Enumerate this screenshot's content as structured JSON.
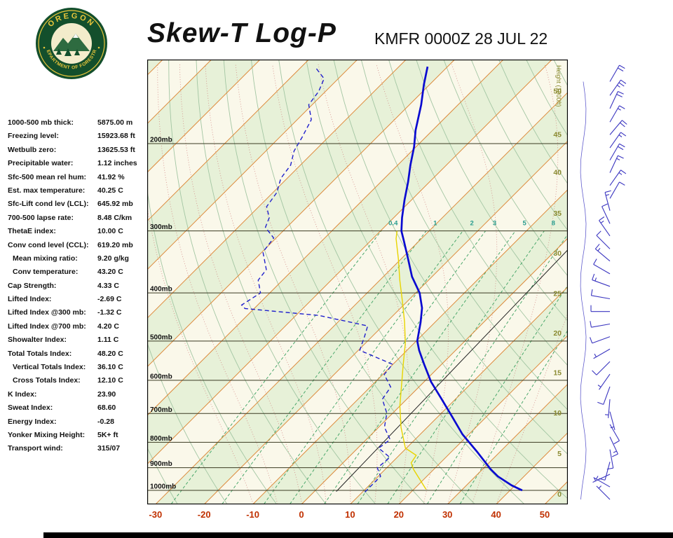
{
  "header": {
    "title": "Skew-T Log-P",
    "station": "KMFR 0000Z 28 JUL 22"
  },
  "logo": {
    "top": "OREGON",
    "bottom": "DEPARTMENT OF FORESTRY"
  },
  "indices": [
    {
      "label": "1000-500 mb thick:",
      "value": "5875.00 m"
    },
    {
      "label": "Freezing level:",
      "value": "15923.68 ft"
    },
    {
      "label": "Wetbulb zero:",
      "value": "13625.53 ft"
    },
    {
      "label": "Precipitable water:",
      "value": "1.12 inches"
    },
    {
      "label": "Sfc-500 mean rel hum:",
      "value": "41.92 %"
    },
    {
      "label": "Est. max temperature:",
      "value": "40.25 C"
    },
    {
      "label": "Sfc-Lift cond lev (LCL):",
      "value": "645.92 mb"
    },
    {
      "label": "700-500 lapse rate:",
      "value": "8.48 C/km"
    },
    {
      "label": "ThetaE index:",
      "value": "10.00 C"
    },
    {
      "label": "Conv cond level (CCL):",
      "value": "619.20 mb"
    },
    {
      "label": "Mean mixing ratio:",
      "value": "9.20 g/kg",
      "indent": true
    },
    {
      "label": "Conv temperature:",
      "value": "43.20 C",
      "indent": true
    },
    {
      "label": "Cap Strength:",
      "value": "4.33 C"
    },
    {
      "label": "Lifted Index:",
      "value": "-2.69 C"
    },
    {
      "label": "Lifted Index @300 mb:",
      "value": "-1.32 C"
    },
    {
      "label": "Lifted Index @700 mb:",
      "value": "4.20 C"
    },
    {
      "label": "Showalter Index:",
      "value": "1.11 C"
    },
    {
      "label": "Total Totals Index:",
      "value": "48.20 C"
    },
    {
      "label": "Vertical Totals Index:",
      "value": "36.10 C",
      "indent": true
    },
    {
      "label": "Cross Totals Index:",
      "value": "12.10 C",
      "indent": true
    },
    {
      "label": "K Index:",
      "value": "23.90"
    },
    {
      "label": "Sweat Index:",
      "value": "68.60"
    },
    {
      "label": "Energy Index:",
      "value": "-0.28"
    },
    {
      "label": "Yonker Mixing Height:",
      "value": "5K+ ft"
    },
    {
      "label": "Transport wind:",
      "value": "315/07"
    }
  ],
  "colors": {
    "temperature": "#0a0ad0",
    "dewpoint": "#2020cc",
    "wetbulb": "#e8d400",
    "isotherm": "#dd8a3c",
    "dry_adiabat": "#a3c6a3",
    "mixing_ratio": "#3aa060",
    "moist_adiabat": "#cc7070",
    "isobar": "#3a3a22",
    "band_green": "#e7f1d8",
    "band_cream": "#faf8ea",
    "mixing_label": "#2a9d8f",
    "height_text": "#8a8a30",
    "temp_tick": "#c03000",
    "barb": "#3a35c0",
    "reference": "#222222",
    "border": "#000000"
  },
  "chart_data": {
    "type": "skew-t-log-p",
    "title": "Skew-T Log-P",
    "station": "KMFR 0000Z 28 JUL 22",
    "pressure_unit": "mb",
    "pressure_ticks_mb": [
      200,
      300,
      400,
      500,
      600,
      700,
      800,
      900,
      1000
    ],
    "temp_ticks_c": [
      -30,
      -20,
      -10,
      0,
      10,
      20,
      30,
      40,
      50
    ],
    "height_axis_title": "Height (1000ft)",
    "height_ticks": [
      [
        "50",
        157
      ],
      [
        "45",
        192
      ],
      [
        "40",
        229
      ],
      [
        "35",
        277
      ],
      [
        "30",
        333
      ],
      [
        "25",
        402
      ],
      [
        "20",
        483
      ],
      [
        "15",
        580
      ],
      [
        "10",
        699
      ],
      [
        "5",
        844
      ],
      [
        "0",
        1020
      ]
    ],
    "mixing_ratio_labels": [
      [
        "0.4",
        0.4
      ],
      [
        "1",
        1
      ],
      [
        "2",
        2
      ],
      [
        "3",
        3
      ],
      [
        "5",
        5
      ],
      [
        "8",
        8
      ]
    ],
    "grid": {
      "isotherm_min": -130,
      "isotherm_max": 50,
      "isotherm_step": 10,
      "dry_adiabat_min": -30,
      "dry_adiabat_max": 170,
      "dry_adiabat_step": 10,
      "moist_adiabat_starts": [
        -10,
        -5,
        0,
        5,
        10,
        15,
        20,
        25,
        30,
        35,
        40
      ],
      "mixing_ratio_lines": [
        0.4,
        1,
        2,
        3,
        5,
        8,
        12,
        20,
        30
      ]
    },
    "temperature_profile": [
      [
        1000,
        42.5
      ],
      [
        977,
        39.3
      ],
      [
        937,
        34.6
      ],
      [
        907,
        31.7
      ],
      [
        835,
        25.2
      ],
      [
        771,
        18.7
      ],
      [
        711,
        13.0
      ],
      [
        655,
        7.2
      ],
      [
        604,
        1.4
      ],
      [
        557,
        -3.6
      ],
      [
        522,
        -7.5
      ],
      [
        500,
        -9.8
      ],
      [
        458,
        -13.0
      ],
      [
        429,
        -15.6
      ],
      [
        400,
        -19.2
      ],
      [
        371,
        -24.1
      ],
      [
        342,
        -28.5
      ],
      [
        315,
        -33.0
      ],
      [
        300,
        -35.7
      ],
      [
        282,
        -38.3
      ],
      [
        260,
        -41.4
      ],
      [
        239,
        -44.4
      ],
      [
        221,
        -47.4
      ],
      [
        203,
        -50.4
      ],
      [
        188,
        -53.5
      ],
      [
        167,
        -57.6
      ],
      [
        152,
        -61.2
      ],
      [
        140,
        -64.1
      ]
    ],
    "dewpoint_profile": [
      [
        1008,
        10.5
      ],
      [
        937,
        10.5
      ],
      [
        901,
        8.1
      ],
      [
        858,
        8.5
      ],
      [
        822,
        4.3
      ],
      [
        790,
        4.9
      ],
      [
        746,
        1.2
      ],
      [
        699,
        -1.2
      ],
      [
        655,
        -5.0
      ],
      [
        619,
        -5.8
      ],
      [
        584,
        -9.7
      ],
      [
        557,
        -10.1
      ],
      [
        522,
        -19.7
      ],
      [
        489,
        -21.6
      ],
      [
        466,
        -23.1
      ],
      [
        444,
        -35.3
      ],
      [
        430,
        -51.9
      ],
      [
        423,
        -53.3
      ],
      [
        400,
        -51.9
      ],
      [
        377,
        -55.0
      ],
      [
        359,
        -55.5
      ],
      [
        331,
        -59.8
      ],
      [
        310,
        -60.5
      ],
      [
        295,
        -64.4
      ],
      [
        282,
        -65.6
      ],
      [
        268,
        -68.4
      ],
      [
        251,
        -69.2
      ],
      [
        235,
        -71.3
      ],
      [
        221,
        -72.0
      ],
      [
        207,
        -74.2
      ],
      [
        194,
        -75.4
      ],
      [
        179,
        -77.1
      ],
      [
        167,
        -80.7
      ],
      [
        157,
        -81.4
      ],
      [
        148,
        -82.9
      ],
      [
        141,
        -86.7
      ]
    ],
    "wetbulb_profile": [
      [
        995,
        22.5
      ],
      [
        908,
        15.9
      ],
      [
        880,
        14.0
      ],
      [
        850,
        13.5
      ],
      [
        822,
        9.8
      ],
      [
        746,
        4.6
      ],
      [
        676,
        0.0
      ],
      [
        613,
        -4.0
      ],
      [
        557,
        -7.9
      ],
      [
        505,
        -11.8
      ],
      [
        458,
        -16.3
      ],
      [
        416,
        -21.0
      ],
      [
        377,
        -25.9
      ],
      [
        342,
        -30.5
      ],
      [
        311,
        -35.2
      ],
      [
        300,
        -36.6
      ]
    ],
    "reference_line": [
      [
        1005,
        4.5
      ],
      [
        328,
        2.4
      ]
    ],
    "wind_barbs": [
      [
        150,
        30,
        20
      ],
      [
        160,
        35,
        25
      ],
      [
        170,
        25,
        20
      ],
      [
        181,
        30,
        15
      ],
      [
        192,
        40,
        20
      ],
      [
        204,
        35,
        15
      ],
      [
        216,
        30,
        20
      ],
      [
        229,
        25,
        15
      ],
      [
        243,
        35,
        15
      ],
      [
        258,
        30,
        10
      ],
      [
        273,
        345,
        15
      ],
      [
        290,
        335,
        10
      ],
      [
        307,
        325,
        15
      ],
      [
        326,
        315,
        10
      ],
      [
        345,
        310,
        15
      ],
      [
        366,
        300,
        10
      ],
      [
        388,
        290,
        15
      ],
      [
        411,
        280,
        10
      ],
      [
        436,
        270,
        10
      ],
      [
        462,
        260,
        10
      ],
      [
        490,
        250,
        10
      ],
      [
        519,
        240,
        5
      ],
      [
        550,
        225,
        10
      ],
      [
        583,
        215,
        5
      ],
      [
        618,
        200,
        10
      ],
      [
        655,
        185,
        5
      ],
      [
        694,
        165,
        5
      ],
      [
        736,
        150,
        10
      ],
      [
        780,
        155,
        15
      ],
      [
        827,
        170,
        10
      ],
      [
        876,
        195,
        10
      ],
      [
        928,
        245,
        5
      ],
      [
        984,
        300,
        7
      ],
      [
        1043,
        315,
        7
      ]
    ]
  }
}
